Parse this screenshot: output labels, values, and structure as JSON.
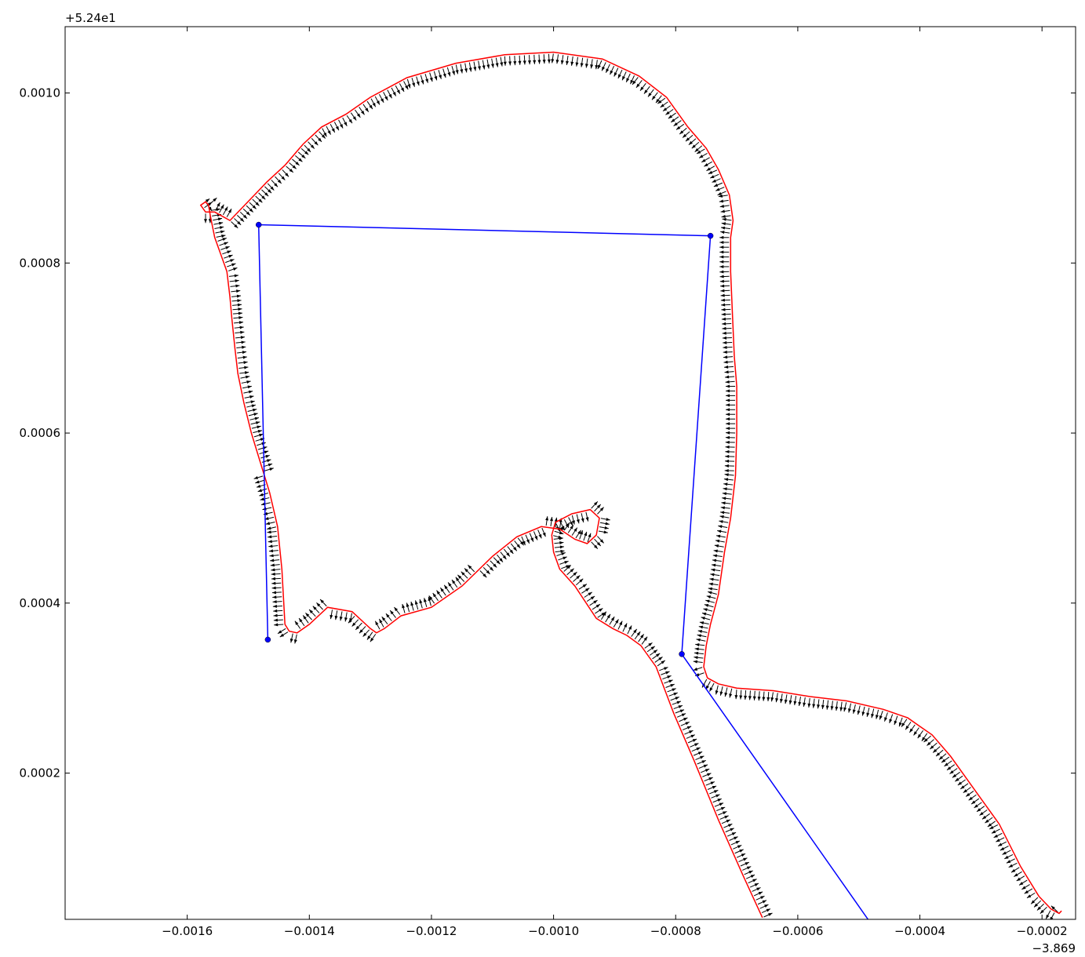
{
  "chart_data": {
    "type": "line",
    "title": "",
    "xlabel": "",
    "ylabel": "",
    "x_offset_text": "−3.869",
    "y_offset_text": "+5.24e1",
    "xlim": [
      -0.0018,
      -0.000145
    ],
    "ylim": [
      2.8e-05,
      0.001078
    ],
    "grid": false,
    "xticks": [
      -0.0016,
      -0.0014,
      -0.0012,
      -0.001,
      -0.0008,
      -0.0006,
      -0.0004,
      -0.0002
    ],
    "xtick_labels": [
      "−0.0016",
      "−0.0014",
      "−0.0012",
      "−0.0010",
      "−0.0008",
      "−0.0006",
      "−0.0004",
      "−0.0002"
    ],
    "yticks": [
      0.0002,
      0.0004,
      0.0006,
      0.0008,
      0.001
    ],
    "ytick_labels": [
      "0.0002",
      "0.0004",
      "0.0006",
      "0.0008",
      "0.0010"
    ],
    "colors": {
      "contour": "#ff0000",
      "skeleton": "#0000ff",
      "vectors": "#000000"
    },
    "series": [
      {
        "kind": "contour",
        "x": [
          -0.000658,
          -0.00069,
          -0.00073,
          -0.00077,
          -0.000803,
          -0.000832,
          -0.000857,
          -0.00088,
          -0.000903,
          -0.00093,
          -0.000965,
          -0.00099,
          -0.001,
          -0.001003,
          -0.000997,
          -0.00097,
          -0.00094,
          -0.000925,
          -0.00093,
          -0.000945,
          -0.000965,
          -0.00099,
          -0.00102,
          -0.00106,
          -0.0011,
          -0.00115,
          -0.0012,
          -0.00125,
          -0.001277,
          -0.00129,
          -0.0013,
          -0.00133,
          -0.00137,
          -0.0014,
          -0.00142,
          -0.001433,
          -0.00144,
          -0.001445,
          -0.001452,
          -0.001465,
          -0.00148,
          -0.001495,
          -0.001507,
          -0.001517,
          -0.001522,
          -0.001527,
          -0.00153,
          -0.001535,
          -0.001545,
          -0.001555,
          -0.001562,
          -0.001565,
          -0.00157,
          -0.001578,
          -0.00157,
          -0.001555,
          -0.00153,
          -0.00149,
          -0.00147,
          -0.00144,
          -0.00141,
          -0.00138,
          -0.00134,
          -0.0013,
          -0.00124,
          -0.00116,
          -0.00108,
          -0.001,
          -0.00092,
          -0.00086,
          -0.000815,
          -0.00078,
          -0.00075,
          -0.00073,
          -0.000712,
          -0.000706,
          -0.00071,
          -0.00071,
          -0.000707,
          -0.000704,
          -0.0007,
          -0.0007,
          -0.000702,
          -0.00071,
          -0.00072,
          -0.00073,
          -0.000743,
          -0.00075,
          -0.000754,
          -0.000748,
          -0.00073,
          -0.0007,
          -0.00064,
          -0.00058,
          -0.00052,
          -0.00046,
          -0.00042,
          -0.0004,
          -0.00038,
          -0.00035,
          -0.00031,
          -0.00027,
          -0.000235,
          -0.000205,
          -0.000185,
          -0.000172,
          -0.000168
        ],
        "y": [
          3e-05,
          8e-05,
          0.000145,
          0.000215,
          0.00027,
          0.000325,
          0.00035,
          0.000362,
          0.00037,
          0.000382,
          0.00042,
          0.00044,
          0.00046,
          0.00048,
          0.000495,
          0.000505,
          0.00051,
          0.0005,
          0.00048,
          0.00047,
          0.000475,
          0.000487,
          0.00049,
          0.000478,
          0.000455,
          0.00042,
          0.000395,
          0.000385,
          0.00037,
          0.000365,
          0.00037,
          0.00039,
          0.000395,
          0.000375,
          0.000365,
          0.000367,
          0.000375,
          0.00044,
          0.00049,
          0.00053,
          0.000565,
          0.0006,
          0.000635,
          0.00067,
          0.0007,
          0.000735,
          0.00076,
          0.00079,
          0.00081,
          0.00083,
          0.000855,
          0.000868,
          0.000872,
          0.000868,
          0.00086,
          0.00086,
          0.00085,
          0.00088,
          0.000895,
          0.000915,
          0.00094,
          0.00096,
          0.000975,
          0.000995,
          0.001018,
          0.001035,
          0.001045,
          0.001048,
          0.00104,
          0.00102,
          0.000995,
          0.00096,
          0.000935,
          0.00091,
          0.00088,
          0.00085,
          0.00083,
          0.00079,
          0.00074,
          0.00069,
          0.000655,
          0.0006,
          0.00055,
          0.0005,
          0.00046,
          0.00041,
          0.000375,
          0.00035,
          0.000325,
          0.000312,
          0.000305,
          0.0003,
          0.000297,
          0.00029,
          0.000285,
          0.000275,
          0.000265,
          0.000255,
          0.000245,
          0.00022,
          0.00018,
          0.00014,
          9e-05,
          5.5e-05,
          4e-05,
          3.5e-05,
          3.8e-05
        ]
      },
      {
        "kind": "skeleton",
        "markers": true,
        "x": [
          -0.001468,
          -0.001483,
          -0.000743,
          -0.00079,
          -0.000485
        ],
        "y": [
          0.000357,
          0.000845,
          0.000832,
          0.00034,
          2.8e-05
        ]
      }
    ]
  }
}
